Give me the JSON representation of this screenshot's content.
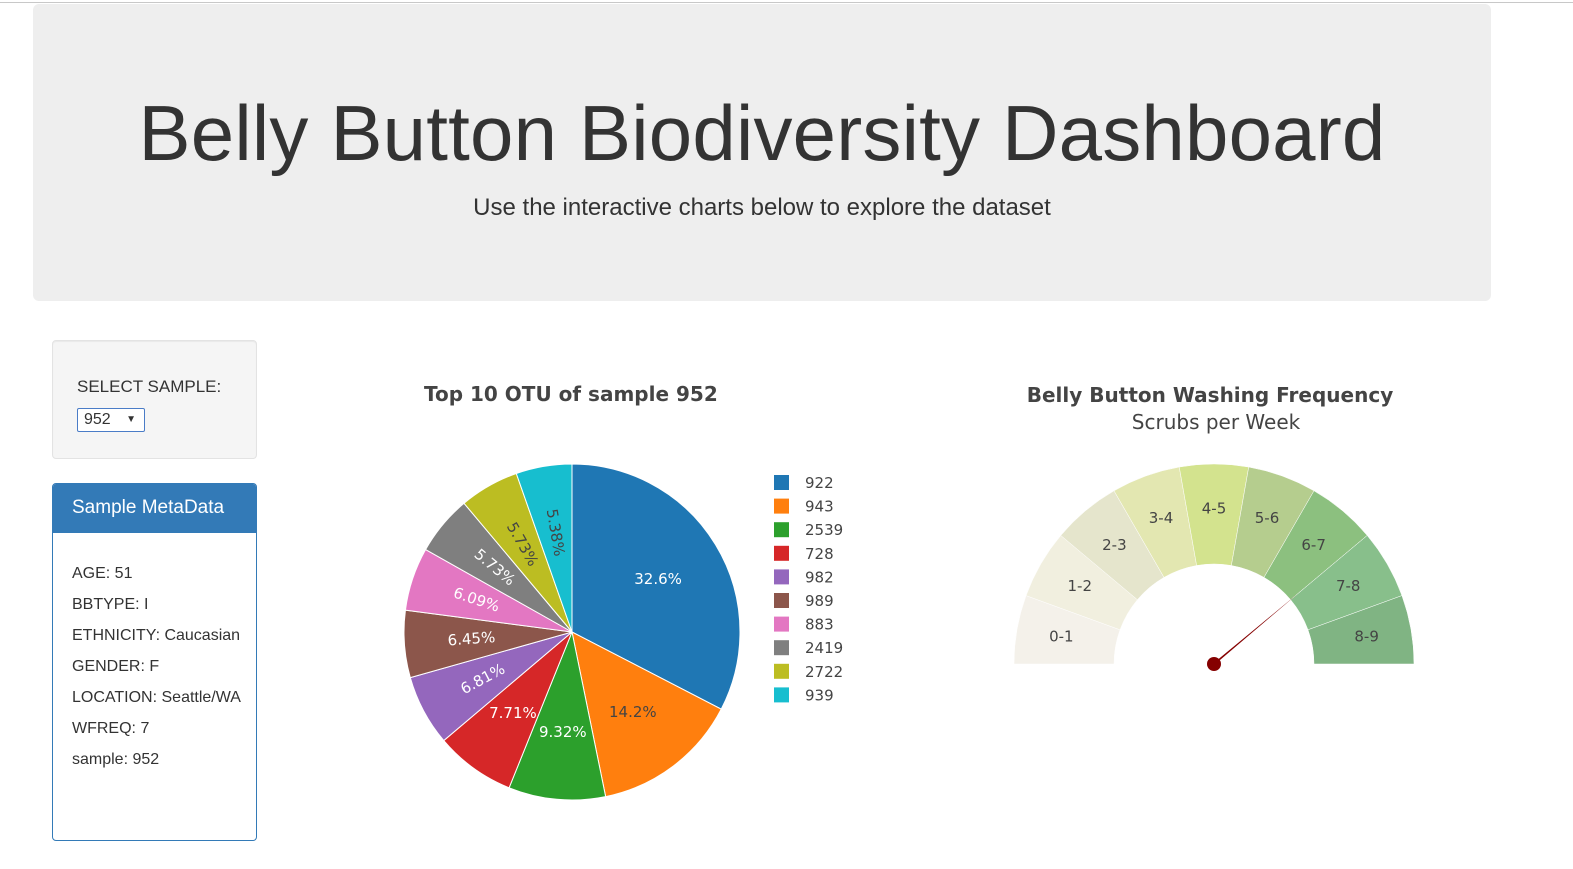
{
  "header": {
    "title": "Belly Button Biodiversity Dashboard",
    "subtitle": "Use the interactive charts below to explore the dataset"
  },
  "selector": {
    "label": "SELECT SAMPLE:",
    "selected": "952"
  },
  "metadata_panel": {
    "title": "Sample MetaData",
    "items": [
      {
        "label": "AGE: 51"
      },
      {
        "label": "BBTYPE: I"
      },
      {
        "label": "ETHNICITY: Caucasian"
      },
      {
        "label": "GENDER: F"
      },
      {
        "label": "LOCATION: Seattle/WA"
      },
      {
        "label": "WFREQ: 7"
      },
      {
        "label": "sample: 952"
      }
    ]
  },
  "chart_data": [
    {
      "type": "pie",
      "title": "Top 10 OTU of sample 952",
      "labels": [
        "922",
        "943",
        "2539",
        "728",
        "982",
        "989",
        "883",
        "2419",
        "2722",
        "939"
      ],
      "values": [
        32.6,
        14.2,
        9.32,
        7.71,
        6.81,
        6.45,
        6.09,
        5.73,
        5.73,
        5.38
      ],
      "text_labels": [
        "32.6%",
        "14.2%",
        "9.32%",
        "7.71%",
        "6.81%",
        "6.45%",
        "6.09%",
        "5.73%",
        "5.73%",
        "5.38%"
      ],
      "colors": [
        "#1f77b4",
        "#ff7f0e",
        "#2ca02c",
        "#d62728",
        "#9467bd",
        "#8c564b",
        "#e377c2",
        "#7f7f7f",
        "#bcbd22",
        "#17becf"
      ],
      "legend": "right"
    },
    {
      "type": "gauge",
      "title": "Belly Button Washing Frequency",
      "subtitle": "Scrubs per Week",
      "ranges": [
        "0-1",
        "1-2",
        "2-3",
        "3-4",
        "4-5",
        "5-6",
        "6-7",
        "7-8",
        "8-9"
      ],
      "colors": [
        "#f4f1ea",
        "#f1efdf",
        "#e5e5cc",
        "#e3e7b1",
        "#d3e38e",
        "#b5cd8e",
        "#8cc07f",
        "#88bf8b",
        "#80b483"
      ],
      "value": 7,
      "min": 0,
      "max": 9,
      "needle_color": "#850000"
    }
  ]
}
